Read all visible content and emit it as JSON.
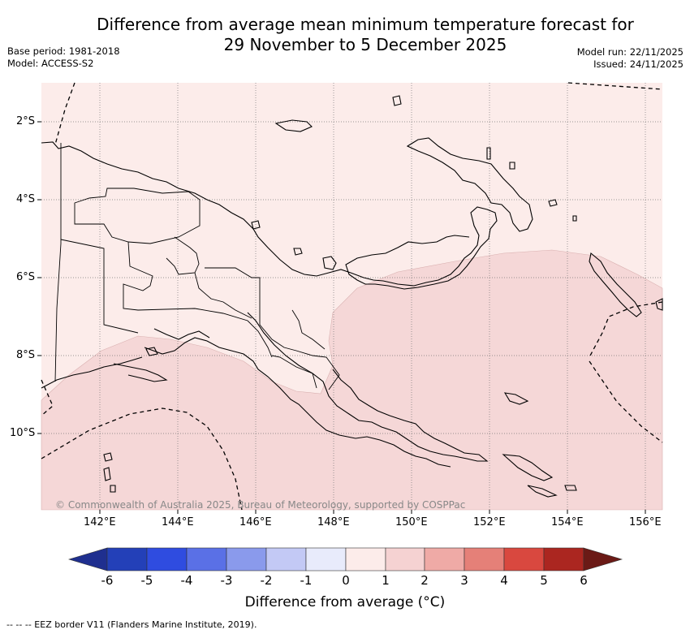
{
  "title_line1": "Difference from average mean minimum temperature forecast for",
  "title_line2": "29 November to 5 December 2025",
  "base_period": "Base period: 1981-2018",
  "model": "Model: ACCESS-S2",
  "model_run": "Model run: 22/11/2025",
  "issued": "Issued: 24/11/2025",
  "copyright": "© Commonwealth of Australia 2025, Bureau of Meteorology, supported by COSPPac",
  "lat_labels": [
    "2°S",
    "4°S",
    "6°S",
    "8°S",
    "10°S"
  ],
  "lon_labels": [
    "142°E",
    "144°E",
    "146°E",
    "148°E",
    "150°E",
    "152°E",
    "154°E",
    "156°E"
  ],
  "colorbar": {
    "ticks": [
      "-6",
      "-5",
      "-4",
      "-3",
      "-2",
      "-1",
      "0",
      "1",
      "2",
      "3",
      "4",
      "5",
      "6"
    ],
    "colors": [
      "#1f2f8f",
      "#2340b8",
      "#2f4ce0",
      "#5a70e6",
      "#8a9aec",
      "#c3c9f5",
      "#e8ebfb",
      "#fcecea",
      "#f5d2d2",
      "#efaaa6",
      "#e58078",
      "#d9483f",
      "#ab2620",
      "#6b1a16"
    ],
    "label": "Difference from average (°C)"
  },
  "map_colors": {
    "band_0_1": "#fcecea",
    "band_1_2": "#f5d7d7"
  },
  "footnote": "-- -- -- EEZ border V11 (Flanders Marine Institute, 2019)."
}
